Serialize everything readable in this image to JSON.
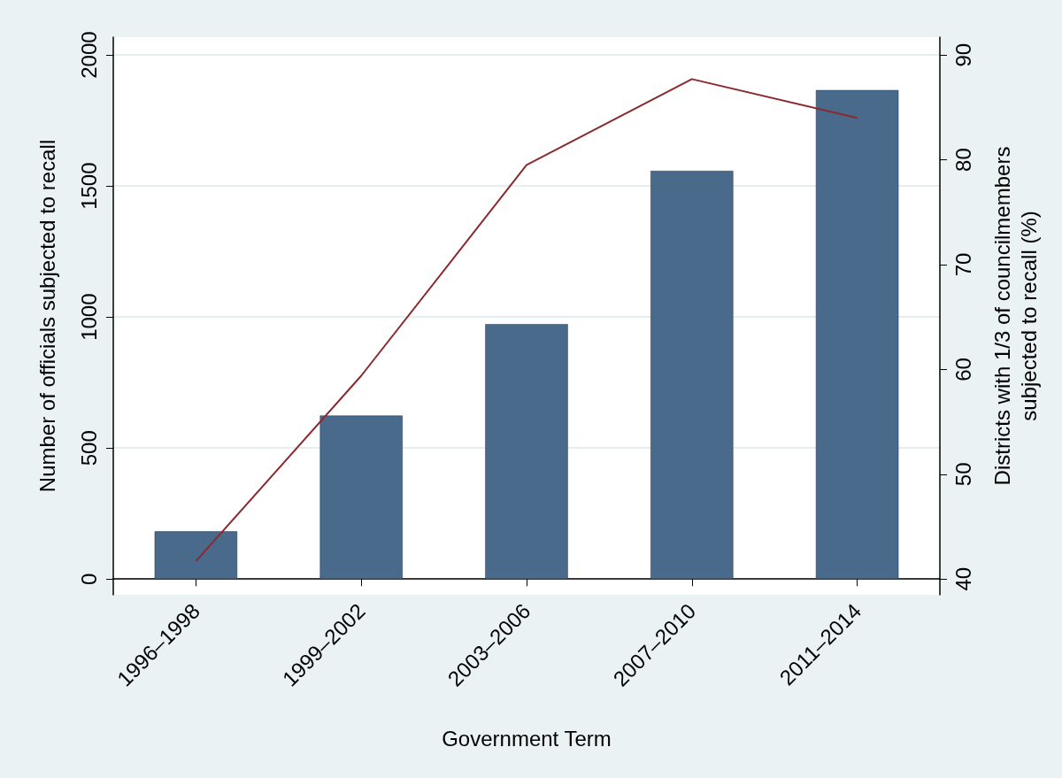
{
  "chart_data": {
    "type": "bar",
    "xlabel": "Government Term",
    "ylabel": "Number of officials subjected to recall",
    "y2label": "Districts with 1/3 of councilmembers\nsubjected to recall (%)",
    "categories": [
      "1996–1998",
      "1999–2002",
      "2003–2006",
      "2007–2010",
      "2011–2014"
    ],
    "series": [
      {
        "color": "#496a8b",
        "values": [
          182,
          624,
          973,
          1558,
          1866
        ]
      },
      {
        "type": "line",
        "axis": "y2",
        "color": "#8b2a2e",
        "values": [
          41.7,
          59.4,
          79.5,
          87.7,
          84.0
        ]
      }
    ],
    "ylim": [
      -60,
      2068
    ],
    "yticks": [
      0,
      500,
      1000,
      1500,
      2000
    ],
    "y2lim": [
      38.5,
      91.7
    ],
    "y2ticks": [
      40,
      50,
      60,
      70,
      80,
      90
    ],
    "grid": "y",
    "marker": "none",
    "line_style": "solid"
  }
}
